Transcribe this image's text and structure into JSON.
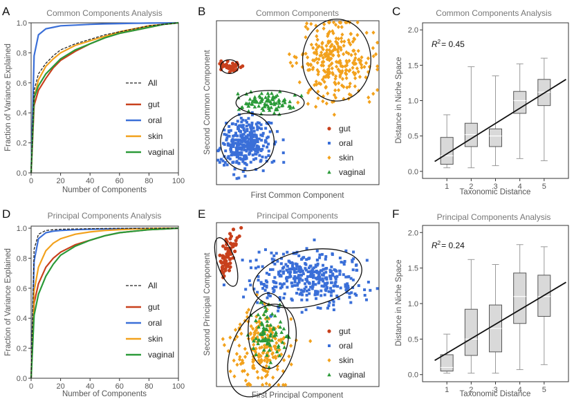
{
  "chart_data": [
    {
      "panel": "A",
      "type": "line",
      "title": "Common Components Analysis",
      "xlabel": "Number of Components",
      "ylabel": "Fraction of Variance Explained",
      "xlim": [
        0,
        100
      ],
      "ylim": [
        0,
        1.0
      ],
      "xticks": [
        "0",
        "20",
        "40",
        "60",
        "80",
        "100"
      ],
      "yticks": [
        "0.0",
        "0.2",
        "0.4",
        "0.6",
        "0.8",
        "1.0"
      ],
      "legend": [
        "All",
        "gut",
        "oral",
        "skin",
        "vaginal"
      ],
      "series": [
        {
          "name": "All",
          "style": "dashed",
          "color": "#222222",
          "x": [
            0,
            2,
            5,
            10,
            15,
            20,
            30,
            40,
            50,
            60,
            70,
            80,
            90,
            100
          ],
          "y": [
            0,
            0.55,
            0.66,
            0.73,
            0.78,
            0.82,
            0.86,
            0.89,
            0.92,
            0.94,
            0.96,
            0.98,
            0.99,
            1.0
          ]
        },
        {
          "name": "gut",
          "color": "#c8401c",
          "x": [
            0,
            2,
            5,
            10,
            15,
            20,
            30,
            40,
            50,
            60,
            70,
            80,
            90,
            100
          ],
          "y": [
            0,
            0.45,
            0.55,
            0.63,
            0.7,
            0.75,
            0.81,
            0.86,
            0.9,
            0.93,
            0.95,
            0.97,
            0.99,
            1.0
          ]
        },
        {
          "name": "oral",
          "color": "#3a6fd8",
          "x": [
            0,
            2,
            5,
            10,
            15,
            20,
            30,
            40,
            50,
            60,
            70,
            80,
            90,
            100
          ],
          "y": [
            0,
            0.78,
            0.92,
            0.96,
            0.97,
            0.98,
            0.985,
            0.99,
            0.993,
            0.995,
            0.997,
            0.998,
            0.999,
            1.0
          ]
        },
        {
          "name": "skin",
          "color": "#f2a11c",
          "x": [
            0,
            2,
            5,
            10,
            15,
            20,
            30,
            40,
            50,
            60,
            70,
            80,
            90,
            100
          ],
          "y": [
            0,
            0.5,
            0.62,
            0.71,
            0.76,
            0.8,
            0.85,
            0.88,
            0.91,
            0.94,
            0.96,
            0.98,
            0.99,
            1.0
          ]
        },
        {
          "name": "vaginal",
          "color": "#2a9a38",
          "x": [
            0,
            2,
            5,
            10,
            15,
            20,
            30,
            40,
            50,
            60,
            70,
            80,
            90,
            100
          ],
          "y": [
            0,
            0.5,
            0.58,
            0.66,
            0.71,
            0.76,
            0.82,
            0.86,
            0.9,
            0.93,
            0.95,
            0.97,
            0.99,
            1.0
          ]
        }
      ]
    },
    {
      "panel": "B",
      "type": "scatter",
      "title": "Common Components",
      "xlabel": "First Common Component",
      "ylabel": "Second Common Component",
      "xlim": [
        0,
        10
      ],
      "ylim": [
        0,
        10
      ],
      "legend": [
        "gut",
        "oral",
        "skin",
        "vaginal"
      ],
      "clusters": [
        {
          "name": "gut",
          "color": "#c8401c",
          "marker": "circle",
          "n": 40,
          "cx": 0.8,
          "cy": 7.2,
          "sx": 0.3,
          "sy": 0.18,
          "rot": 0
        },
        {
          "name": "oral",
          "color": "#3a6fd8",
          "marker": "square",
          "n": 320,
          "cx": 1.8,
          "cy": 2.5,
          "sx": 0.75,
          "sy": 0.75,
          "rot": 0
        },
        {
          "name": "skin",
          "color": "#f2a11c",
          "marker": "diamond",
          "n": 280,
          "cx": 7.3,
          "cy": 7.5,
          "sx": 1.15,
          "sy": 1.25,
          "rot": 0
        },
        {
          "name": "vaginal",
          "color": "#2a9a38",
          "marker": "triangle",
          "n": 90,
          "cx": 3.2,
          "cy": 5.0,
          "sx": 1.0,
          "sy": 0.32,
          "rot": 0
        }
      ],
      "ellipses": [
        {
          "cx": 0.8,
          "cy": 7.2,
          "rx": 0.55,
          "ry": 0.42,
          "rot": 0
        },
        {
          "cx": 1.9,
          "cy": 2.6,
          "rx": 1.65,
          "ry": 1.75,
          "rot": 0
        },
        {
          "cx": 3.3,
          "cy": 5.0,
          "rx": 2.1,
          "ry": 0.75,
          "rot": 0
        },
        {
          "cx": 7.4,
          "cy": 7.6,
          "rx": 2.1,
          "ry": 2.5,
          "rot": 0
        }
      ]
    },
    {
      "panel": "C",
      "type": "box",
      "title": "Common Components Analysis",
      "xlabel": "Taxonomic Distance",
      "ylabel": "Distance in Niche Space",
      "r2_label": "R",
      "r2_sup": "2",
      "r2_value": "= 0.45",
      "xlim": [
        0,
        6
      ],
      "ylim": [
        -0.1,
        2.1
      ],
      "categories": [
        "1",
        "2",
        "3",
        "4",
        "5"
      ],
      "yticks": [
        "0.0",
        "0.5",
        "1.0",
        "1.5",
        "2.0"
      ],
      "boxes": [
        {
          "min": 0.05,
          "q1": 0.1,
          "median": 0.22,
          "q3": 0.48,
          "max": 0.8
        },
        {
          "min": 0.05,
          "q1": 0.35,
          "median": 0.52,
          "q3": 0.68,
          "max": 1.48
        },
        {
          "min": 0.08,
          "q1": 0.35,
          "median": 0.5,
          "q3": 0.6,
          "max": 1.35
        },
        {
          "min": 0.18,
          "q1": 0.82,
          "median": 1.0,
          "q3": 1.13,
          "max": 1.52
        },
        {
          "min": 0.15,
          "q1": 0.93,
          "median": 1.12,
          "q3": 1.3,
          "max": 1.6
        }
      ],
      "fit": {
        "x": [
          0.5,
          5.9
        ],
        "y": [
          0.14,
          1.3
        ]
      }
    },
    {
      "panel": "D",
      "type": "line",
      "title": "Principal Components Analysis",
      "xlabel": "Number of Components",
      "ylabel": "Fraction of Variance Explained",
      "xlim": [
        0,
        100
      ],
      "ylim": [
        0,
        1.0
      ],
      "xticks": [
        "0",
        "20",
        "40",
        "60",
        "80",
        "100"
      ],
      "yticks": [
        "0.0",
        "0.2",
        "0.4",
        "0.6",
        "0.8",
        "1.0"
      ],
      "legend": [
        "All",
        "gut",
        "oral",
        "skin",
        "vaginal"
      ],
      "series": [
        {
          "name": "All",
          "style": "dashed",
          "color": "#222222",
          "x": [
            0,
            2,
            5,
            10,
            15,
            20,
            30,
            40,
            50,
            60,
            70,
            80,
            90,
            100
          ],
          "y": [
            0,
            0.86,
            0.96,
            0.985,
            0.99,
            0.993,
            0.995,
            0.997,
            0.998,
            0.999,
            0.999,
            1.0,
            1.0,
            1.0
          ]
        },
        {
          "name": "gut",
          "color": "#c8401c",
          "x": [
            0,
            2,
            5,
            10,
            15,
            20,
            30,
            40,
            50,
            60,
            70,
            80,
            90,
            100
          ],
          "y": [
            0,
            0.5,
            0.63,
            0.74,
            0.8,
            0.84,
            0.89,
            0.92,
            0.95,
            0.97,
            0.98,
            0.99,
            0.995,
            1.0
          ]
        },
        {
          "name": "oral",
          "color": "#3a6fd8",
          "x": [
            0,
            2,
            5,
            10,
            15,
            20,
            30,
            40,
            50,
            60,
            70,
            80,
            90,
            100
          ],
          "y": [
            0,
            0.78,
            0.93,
            0.97,
            0.98,
            0.985,
            0.99,
            0.993,
            0.995,
            0.997,
            0.998,
            0.999,
            1.0,
            1.0
          ]
        },
        {
          "name": "skin",
          "color": "#f2a11c",
          "x": [
            0,
            2,
            5,
            10,
            15,
            20,
            30,
            40,
            50,
            60,
            70,
            80,
            90,
            100
          ],
          "y": [
            0,
            0.58,
            0.74,
            0.85,
            0.9,
            0.93,
            0.96,
            0.975,
            0.985,
            0.99,
            0.995,
            0.998,
            1.0,
            1.0
          ]
        },
        {
          "name": "vaginal",
          "color": "#2a9a38",
          "x": [
            0,
            2,
            5,
            10,
            15,
            20,
            30,
            40,
            50,
            60,
            70,
            80,
            90,
            100
          ],
          "y": [
            0,
            0.42,
            0.56,
            0.68,
            0.76,
            0.82,
            0.88,
            0.92,
            0.95,
            0.97,
            0.98,
            0.99,
            0.995,
            1.0
          ]
        }
      ]
    },
    {
      "panel": "E",
      "type": "scatter",
      "title": "Principal Components",
      "xlabel": "First Principal Component",
      "ylabel": "Second Principal Component",
      "xlim": [
        0,
        10
      ],
      "ylim": [
        0,
        10
      ],
      "legend": [
        "gut",
        "oral",
        "skin",
        "vaginal"
      ],
      "clusters": [
        {
          "name": "gut",
          "color": "#c8401c",
          "marker": "circle",
          "n": 70,
          "cx": 0.7,
          "cy": 8.0,
          "sx": 0.22,
          "sy": 0.75,
          "rot": -15
        },
        {
          "name": "oral",
          "color": "#3a6fd8",
          "marker": "square",
          "n": 380,
          "cx": 5.6,
          "cy": 6.6,
          "sx": 1.7,
          "sy": 0.8,
          "rot": 0
        },
        {
          "name": "skin",
          "color": "#f2a11c",
          "marker": "diamond",
          "n": 200,
          "cx": 2.9,
          "cy": 2.4,
          "sx": 0.9,
          "sy": 1.2,
          "rot": 0
        },
        {
          "name": "vaginal",
          "color": "#2a9a38",
          "marker": "triangle",
          "n": 80,
          "cx": 3.2,
          "cy": 3.3,
          "sx": 0.55,
          "sy": 0.8,
          "rot": 0
        }
      ],
      "ellipses": [
        {
          "cx": 0.6,
          "cy": 7.6,
          "rx": 0.55,
          "ry": 1.55,
          "rot": -18
        },
        {
          "cx": 5.6,
          "cy": 6.6,
          "rx": 3.4,
          "ry": 1.7,
          "rot": -12
        },
        {
          "cx": 3.2,
          "cy": 3.4,
          "rx": 1.25,
          "ry": 2.3,
          "rot": 0
        },
        {
          "cx": 2.8,
          "cy": 2.2,
          "rx": 1.85,
          "ry": 3.0,
          "rot": 25
        }
      ]
    },
    {
      "panel": "F",
      "type": "box",
      "title": "Principal Components Analysis",
      "xlabel": "Taxonomic Distance",
      "ylabel": "Distance in Niche Space",
      "r2_label": "R",
      "r2_sup": "2",
      "r2_value": "= 0.24",
      "xlim": [
        0,
        6
      ],
      "ylim": [
        -0.1,
        2.1
      ],
      "categories": [
        "1",
        "2",
        "3",
        "4",
        "5"
      ],
      "yticks": [
        "0.0",
        "0.5",
        "1.0",
        "1.5",
        "2.0"
      ],
      "boxes": [
        {
          "min": 0.02,
          "q1": 0.05,
          "median": 0.1,
          "q3": 0.28,
          "max": 0.57
        },
        {
          "min": 0.02,
          "q1": 0.27,
          "median": 0.5,
          "q3": 0.92,
          "max": 1.62
        },
        {
          "min": 0.02,
          "q1": 0.32,
          "median": 0.65,
          "q3": 0.98,
          "max": 1.55
        },
        {
          "min": 0.07,
          "q1": 0.72,
          "median": 1.1,
          "q3": 1.43,
          "max": 1.83
        },
        {
          "min": 0.14,
          "q1": 0.82,
          "median": 1.1,
          "q3": 1.4,
          "max": 1.8
        }
      ],
      "fit": {
        "x": [
          0.5,
          5.9
        ],
        "y": [
          0.2,
          1.3
        ]
      }
    }
  ]
}
